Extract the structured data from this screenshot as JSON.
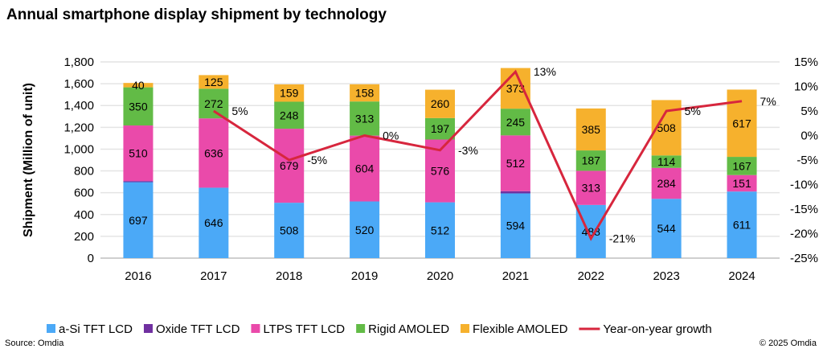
{
  "title": "Annual smartphone display shipment by technology",
  "source": "Source: Omdia",
  "copyright": "© 2025 Omdia",
  "chart_data": {
    "type": "bar",
    "stacked": true,
    "categories": [
      "2016",
      "2017",
      "2018",
      "2019",
      "2020",
      "2021",
      "2022",
      "2023",
      "2024"
    ],
    "ylabel": "Shipment (Million of unit)",
    "ylim": [
      0,
      1800
    ],
    "yticks": [
      "0",
      "200",
      "400",
      "600",
      "800",
      "1,000",
      "1,200",
      "1,400",
      "1,600",
      "1,800"
    ],
    "y2lim": [
      -25,
      15
    ],
    "y2ticks": [
      "-25%",
      "-20%",
      "-15%",
      "-10%",
      "-5%",
      "0%",
      "5%",
      "10%",
      "15%"
    ],
    "grid": true,
    "legend": "bottom",
    "series": [
      {
        "name": "a-Si TFT LCD",
        "color": "#4BA9F7",
        "values": [
          697,
          646,
          508,
          520,
          512,
          594,
          488,
          544,
          611
        ],
        "labels": [
          "697",
          "646",
          "508",
          "520",
          "512",
          "594",
          "488",
          "544",
          "611"
        ]
      },
      {
        "name": "Oxide TFT LCD",
        "color": "#7030A0",
        "values": [
          10,
          0,
          0,
          0,
          0,
          20,
          0,
          0,
          0
        ],
        "labels": [
          "",
          "",
          "",
          "",
          "",
          "",
          "",
          "",
          ""
        ]
      },
      {
        "name": "LTPS TFT LCD",
        "color": "#EA4AAA",
        "values": [
          510,
          636,
          679,
          604,
          576,
          512,
          313,
          284,
          151
        ],
        "labels": [
          "510",
          "636",
          "679",
          "604",
          "576",
          "512",
          "313",
          "284",
          "151"
        ]
      },
      {
        "name": "Rigid AMOLED",
        "color": "#62BB46",
        "values": [
          350,
          272,
          248,
          313,
          197,
          245,
          187,
          114,
          167
        ],
        "labels": [
          "350",
          "272",
          "248",
          "313",
          "197",
          "245",
          "187",
          "114",
          "167"
        ]
      },
      {
        "name": "Flexible AMOLED",
        "color": "#F6B12D",
        "values": [
          40,
          125,
          159,
          158,
          260,
          373,
          385,
          508,
          617
        ],
        "labels": [
          "40",
          "125",
          "159",
          "158",
          "260",
          "373",
          "385",
          "508",
          "617"
        ]
      }
    ],
    "line": {
      "name": "Year-on-year growth",
      "color": "#D7263D",
      "axis": "secondary",
      "values": [
        null,
        5,
        -5,
        0,
        -3,
        13,
        -21,
        5,
        7
      ],
      "labels": [
        "",
        "5%",
        "-5%",
        "0%",
        "-3%",
        "13%",
        "-21%",
        "5%",
        "7%"
      ]
    }
  }
}
